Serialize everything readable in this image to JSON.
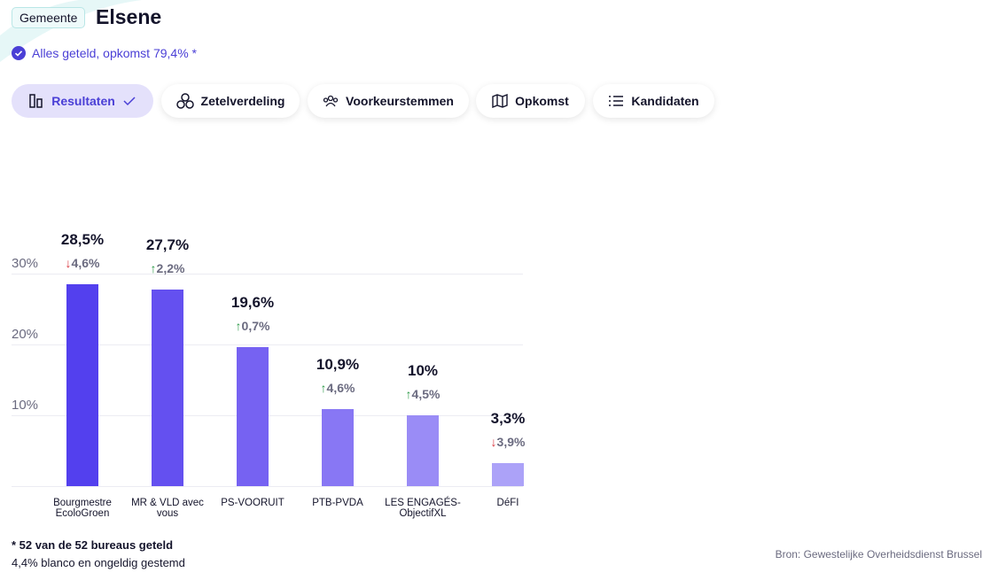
{
  "header": {
    "badge": "Gemeente",
    "title": "Elsene",
    "status": "Alles geteld, opkomst 79,4% *"
  },
  "tabs": [
    "Resultaten",
    "Zetelverdeling",
    "Voorkeurstemmen",
    "Opkomst",
    "Kandidaten"
  ],
  "chart_data": {
    "type": "bar",
    "categories": [
      "Bourgmestre EcoloGroen",
      "MR & VLD avec vous",
      "PS-VOORUIT",
      "PTB-PVDA",
      "LES ENGAGÉS-ObjectifXL",
      "DéFI"
    ],
    "values": [
      28.5,
      27.7,
      19.6,
      10.9,
      10,
      3.3
    ],
    "value_labels": [
      "28,5%",
      "27,7%",
      "19,6%",
      "10,9%",
      "10%",
      "3,3%"
    ],
    "changes": [
      -4.6,
      2.2,
      0.7,
      4.6,
      4.5,
      -3.9
    ],
    "change_labels": [
      "4,6%",
      "2,2%",
      "0,7%",
      "4,6%",
      "4,5%",
      "3,9%"
    ],
    "colors": [
      "#5340ee",
      "#6450f0",
      "#7662f2",
      "#8877f4",
      "#9a8cf6",
      "#aca2f8"
    ],
    "ylim": [
      0,
      30
    ],
    "yticks": [
      {
        "value": 10,
        "label": "10%"
      },
      {
        "value": 20,
        "label": "20%"
      },
      {
        "value": 30,
        "label": "30%"
      }
    ],
    "grid": true
  },
  "footer": {
    "note": "* 52 van de 52 bureaus geteld",
    "blank": "4,4% blanco en ongeldig gestemd",
    "source": "Bron: Gewestelijke Overheidsdienst Brussel"
  }
}
